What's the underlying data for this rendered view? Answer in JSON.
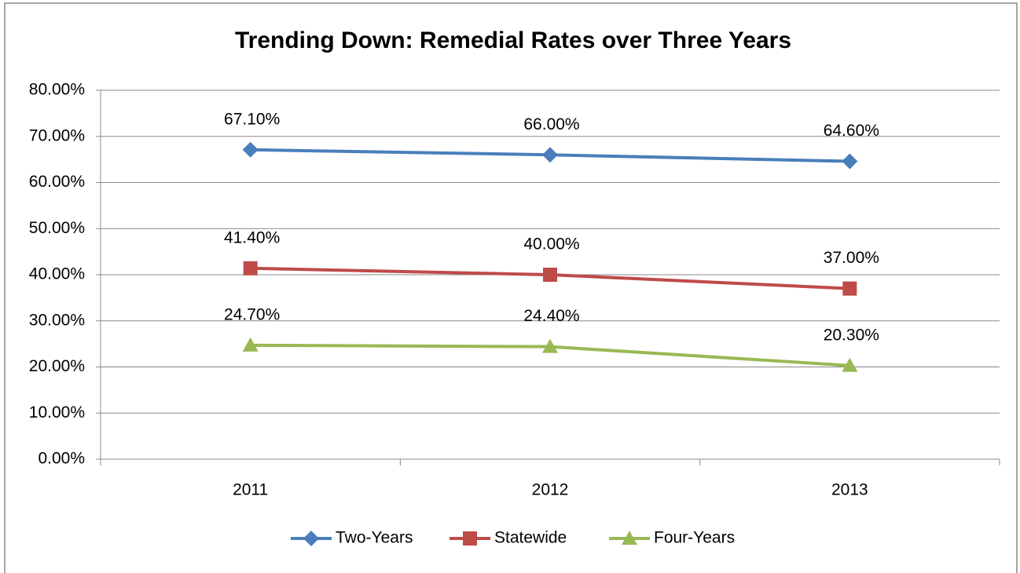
{
  "chart_data": {
    "type": "line",
    "title": "Trending Down: Remedial Rates over Three Years",
    "categories": [
      "2011",
      "2012",
      "2013"
    ],
    "series": [
      {
        "name": "Two-Years",
        "color": "#4a7ebb",
        "marker": "diamond",
        "values": [
          67.1,
          66.0,
          64.6
        ],
        "value_labels": [
          "67.10%",
          "66.00%",
          "64.60%"
        ]
      },
      {
        "name": "Statewide",
        "color": "#be4b48",
        "marker": "square",
        "values": [
          41.4,
          40.0,
          37.0
        ],
        "value_labels": [
          "41.40%",
          "40.00%",
          "37.00%"
        ]
      },
      {
        "name": "Four-Years",
        "color": "#98b954",
        "marker": "triangle",
        "values": [
          24.7,
          24.4,
          20.3
        ],
        "value_labels": [
          "24.70%",
          "24.40%",
          "20.30%"
        ]
      }
    ],
    "ylim": [
      0,
      80
    ],
    "yticks": [
      {
        "value": 0,
        "label": "0.00%"
      },
      {
        "value": 10,
        "label": "10.00%"
      },
      {
        "value": 20,
        "label": "20.00%"
      },
      {
        "value": 30,
        "label": "30.00%"
      },
      {
        "value": 40,
        "label": "40.00%"
      },
      {
        "value": 50,
        "label": "50.00%"
      },
      {
        "value": 60,
        "label": "60.00%"
      },
      {
        "value": 70,
        "label": "70.00%"
      },
      {
        "value": 80,
        "label": "80.00%"
      }
    ],
    "grid": true,
    "legend": "bottom"
  }
}
